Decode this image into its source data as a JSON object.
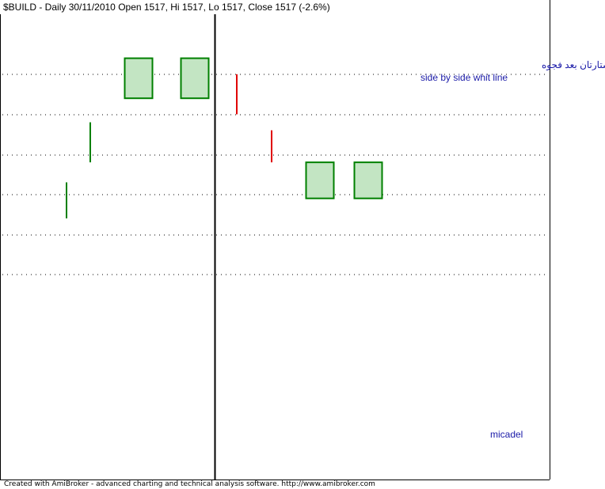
{
  "header": {
    "title": "$BUILD - Daily 30/11/2010 Open 1517, Hi 1517, Lo 1517, Close 1517 (-2.6%)"
  },
  "annotations": {
    "arabic_note": "الشمعتان البيضاوتان اشتارتان بعد فجوه",
    "english_note": "side by side whit line",
    "author": "micadel"
  },
  "footer": {
    "credit": "Created with AmiBroker - advanced charting and technical analysis software. http://www.amibroker.com"
  },
  "colors": {
    "up_body_fill": "#c3e5c3",
    "up_outline": "#008000",
    "down_line": "#e00000",
    "grid": "#000000",
    "annotation_text": "#1a1aa8"
  },
  "chart_data": {
    "type": "candlestick",
    "title": "$BUILD - Daily 30/11/2010",
    "grid": "horizontal dotted",
    "y_gridlines": 6,
    "separator_after_candle_index": 3,
    "candles": [
      {
        "kind": "line",
        "color": "up",
        "open": 4.3,
        "close": 3.4
      },
      {
        "kind": "line",
        "color": "up",
        "open": 5.8,
        "close": 4.8
      },
      {
        "kind": "body",
        "color": "up",
        "open": 6.4,
        "close": 7.4
      },
      {
        "kind": "body",
        "color": "up",
        "open": 6.4,
        "close": 7.4
      },
      {
        "kind": "line",
        "color": "down",
        "open": 7.0,
        "close": 6.0
      },
      {
        "kind": "line",
        "color": "down",
        "open": 5.6,
        "close": 4.8
      },
      {
        "kind": "body",
        "color": "up",
        "open": 3.9,
        "close": 4.8
      },
      {
        "kind": "body",
        "color": "up",
        "open": 3.9,
        "close": 4.8
      }
    ]
  }
}
